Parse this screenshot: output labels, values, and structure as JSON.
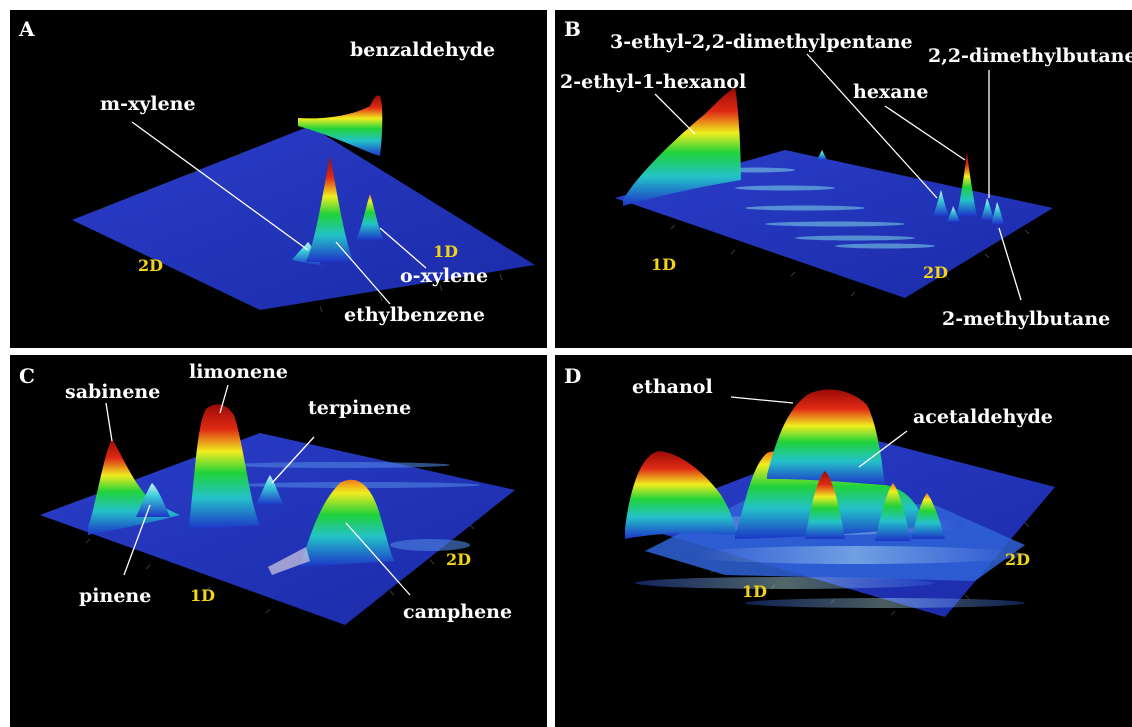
{
  "chart_data": [
    {
      "type": "surface",
      "panel_label": "A",
      "axes": {
        "x": "2D",
        "y": "1D"
      },
      "peaks": [
        {
          "name": "benzaldehyde",
          "height": 0.55
        },
        {
          "name": "m-xylene",
          "height": 0.25
        },
        {
          "name": "ethylbenzene",
          "height": 1.0
        },
        {
          "name": "o-xylene",
          "height": 0.4
        }
      ]
    },
    {
      "type": "surface",
      "panel_label": "B",
      "axes": {
        "x": "1D",
        "y": "2D"
      },
      "peaks": [
        {
          "name": "2-ethyl-1-hexanol",
          "height": 1.0
        },
        {
          "name": "3-ethyl-2,2-dimethylpentane",
          "height": 0.2
        },
        {
          "name": "hexane",
          "height": 0.6
        },
        {
          "name": "2,2-dimethylbutane",
          "height": 0.15
        },
        {
          "name": "2-methylbutane",
          "height": 0.15
        }
      ]
    },
    {
      "type": "surface",
      "panel_label": "C",
      "axes": {
        "x": "1D",
        "y": "2D"
      },
      "peaks": [
        {
          "name": "sabinene",
          "height": 0.55
        },
        {
          "name": "limonene",
          "height": 1.0
        },
        {
          "name": "terpinene",
          "height": 0.25
        },
        {
          "name": "pinene",
          "height": 0.3
        },
        {
          "name": "camphene",
          "height": 0.55
        }
      ]
    },
    {
      "type": "surface",
      "panel_label": "D",
      "axes": {
        "x": "1D",
        "y": "2D"
      },
      "peaks": [
        {
          "name": "ethanol",
          "height": 1.0
        },
        {
          "name": "acetaldehyde",
          "height": 0.45
        }
      ]
    }
  ]
}
